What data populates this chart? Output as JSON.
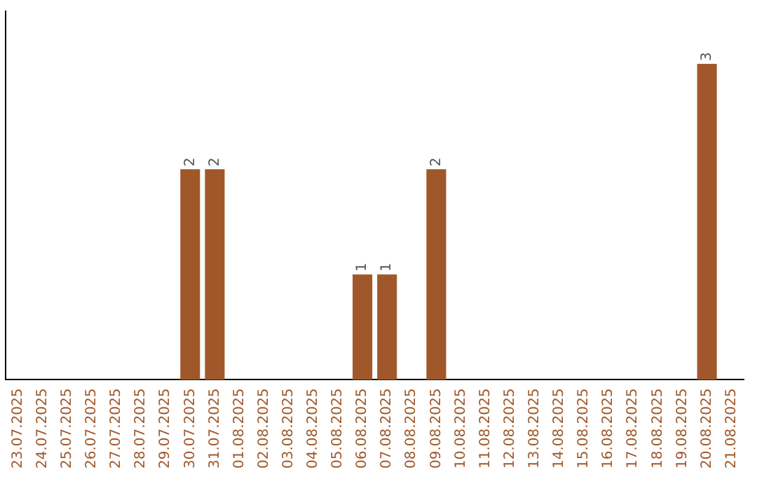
{
  "chart_data": {
    "type": "bar",
    "categories": [
      "23.07.2025",
      "24.07.2025",
      "25.07.2025",
      "26.07.2025",
      "27.07.2025",
      "28.07.2025",
      "29.07.2025",
      "30.07.2025",
      "31.07.2025",
      "01.08.2025",
      "02.08.2025",
      "03.08.2025",
      "04.08.2025",
      "05.08.2025",
      "06.08.2025",
      "07.08.2025",
      "08.08.2025",
      "09.08.2025",
      "10.08.2025",
      "11.08.2025",
      "12.08.2025",
      "13.08.2025",
      "14.08.2025",
      "15.08.2025",
      "16.08.2025",
      "17.08.2025",
      "18.08.2025",
      "19.08.2025",
      "20.08.2025",
      "21.08.2025"
    ],
    "values": [
      0,
      0,
      0,
      0,
      0,
      0,
      0,
      2,
      2,
      0,
      0,
      0,
      0,
      0,
      1,
      1,
      0,
      2,
      0,
      0,
      0,
      0,
      0,
      0,
      0,
      0,
      0,
      0,
      3,
      0
    ],
    "value_labels": [
      null,
      null,
      null,
      null,
      null,
      null,
      null,
      "2",
      "2",
      null,
      null,
      null,
      null,
      null,
      "1",
      "1",
      null,
      "2",
      null,
      null,
      null,
      null,
      null,
      null,
      null,
      null,
      null,
      null,
      "3",
      null
    ],
    "color": "#a0582a",
    "tick_labels": "x",
    "grid": false,
    "legend": false
  }
}
